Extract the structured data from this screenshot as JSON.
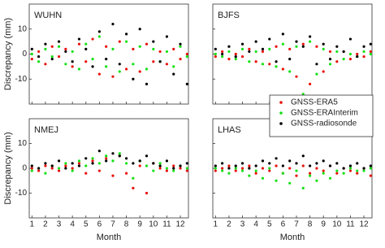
{
  "chart_data": [
    {
      "type": "scatter",
      "title": "WUHN",
      "ylabel": "Discrepancy (mm)",
      "x": [
        1,
        1.5,
        2,
        2.5,
        3,
        3.5,
        4,
        4.5,
        5,
        5.5,
        6,
        6.5,
        7,
        7.5,
        8,
        8.5,
        9,
        9.5,
        10,
        10.5,
        11,
        11.5,
        12,
        12.5
      ],
      "xlim": [
        0.8,
        12.6
      ],
      "ylim": [
        -20,
        20
      ],
      "xticks": [
        1,
        2,
        3,
        4,
        5,
        6,
        7,
        8,
        9,
        10,
        11,
        12
      ],
      "yticks": [
        -10,
        0,
        10
      ],
      "series": [
        {
          "color": "#e8120c",
          "values": [
            -2,
            1,
            -4,
            3,
            -1,
            2,
            -5,
            4,
            -3,
            6,
            -8,
            3,
            -9,
            5,
            -6,
            2,
            -7,
            4,
            -3,
            1,
            -4,
            2,
            -2,
            0
          ]
        },
        {
          "color": "#16e016",
          "values": [
            0,
            -3,
            2,
            -1,
            3,
            -4,
            1,
            -6,
            4,
            -2,
            7,
            -5,
            2,
            -7,
            5,
            -4,
            3,
            -6,
            2,
            -3,
            1,
            -5,
            3,
            -1
          ]
        },
        {
          "color": "#000000",
          "values": [
            2,
            -1,
            4,
            -2,
            5,
            1,
            -3,
            6,
            2,
            -5,
            9,
            -2,
            12,
            -4,
            8,
            -10,
            10,
            -12,
            5,
            -3,
            7,
            -8,
            4,
            -12
          ]
        }
      ]
    },
    {
      "type": "scatter",
      "title": "BJFS",
      "x": [
        1,
        1.5,
        2,
        2.5,
        3,
        3.5,
        4,
        4.5,
        5,
        5.5,
        6,
        6.5,
        7,
        7.5,
        8,
        8.5,
        9,
        9.5,
        10,
        10.5,
        11,
        11.5,
        12,
        12.5
      ],
      "xlim": [
        0.8,
        12.6
      ],
      "ylim": [
        -20,
        20
      ],
      "xticks": [
        1,
        2,
        3,
        4,
        5,
        6,
        7,
        8,
        9,
        10,
        11,
        12
      ],
      "yticks": [
        -10,
        0,
        10
      ],
      "series": [
        {
          "name": "GNSS-ERA5",
          "color": "#e8120c",
          "values": [
            -1,
            1,
            -2,
            0,
            -1,
            2,
            -3,
            1,
            -4,
            3,
            -6,
            2,
            -9,
            4,
            -12,
            3,
            -7,
            1,
            -3,
            1,
            -2,
            0,
            -1,
            1
          ]
        },
        {
          "name": "GNSS-ERAInterim",
          "color": "#16e016",
          "values": [
            0,
            -1,
            1,
            -2,
            2,
            -3,
            1,
            -4,
            2,
            -5,
            4,
            -7,
            3,
            -16,
            5,
            -8,
            2,
            -4,
            1,
            -2,
            0,
            -1,
            1,
            0
          ]
        },
        {
          "name": "GNSS-radiosonde",
          "color": "#000000",
          "values": [
            2,
            0,
            3,
            -1,
            4,
            1,
            5,
            2,
            6,
            -3,
            8,
            -2,
            5,
            3,
            7,
            -4,
            4,
            -2,
            3,
            1,
            6,
            -1,
            3,
            4
          ]
        }
      ]
    },
    {
      "type": "scatter",
      "title": "NMEJ",
      "ylabel": "Discrepancy (mm)",
      "xlabel": "Month",
      "x": [
        1,
        1.5,
        2,
        2.5,
        3,
        3.5,
        4,
        4.5,
        5,
        5.5,
        6,
        6.5,
        7,
        7.5,
        8,
        8.5,
        9,
        9.5,
        10,
        10.5,
        11,
        11.5,
        12,
        12.5
      ],
      "xlim": [
        0.8,
        12.6
      ],
      "ylim": [
        -20,
        20
      ],
      "xticks": [
        1,
        2,
        3,
        4,
        5,
        6,
        7,
        8,
        9,
        10,
        11,
        12
      ],
      "yticks": [
        -10,
        0,
        10
      ],
      "series": [
        {
          "color": "#e8120c",
          "values": [
            0,
            -1,
            1,
            0,
            -1,
            1,
            0,
            2,
            -2,
            3,
            -1,
            4,
            -3,
            5,
            -2,
            -8,
            1,
            -10,
            2,
            0,
            -1,
            1,
            0,
            -1
          ]
        },
        {
          "color": "#16e016",
          "values": [
            -1,
            0,
            -2,
            1,
            0,
            2,
            -1,
            3,
            1,
            4,
            2,
            5,
            3,
            6,
            2,
            -4,
            3,
            1,
            -1,
            2,
            0,
            -1,
            1,
            0
          ]
        },
        {
          "color": "#000000",
          "values": [
            1,
            0,
            2,
            1,
            3,
            0,
            2,
            1,
            4,
            2,
            7,
            3,
            6,
            5,
            4,
            2,
            3,
            5,
            2,
            1,
            3,
            0,
            1,
            2
          ]
        }
      ]
    },
    {
      "type": "scatter",
      "title": "LHAS",
      "xlabel": "Month",
      "x": [
        1,
        1.5,
        2,
        2.5,
        3,
        3.5,
        4,
        4.5,
        5,
        5.5,
        6,
        6.5,
        7,
        7.5,
        8,
        8.5,
        9,
        9.5,
        10,
        10.5,
        11,
        11.5,
        12,
        12.5
      ],
      "xlim": [
        0.8,
        12.6
      ],
      "ylim": [
        -20,
        20
      ],
      "xticks": [
        1,
        2,
        3,
        4,
        5,
        6,
        7,
        8,
        9,
        10,
        11,
        12
      ],
      "yticks": [
        -10,
        0,
        10
      ],
      "series": [
        {
          "color": "#e8120c",
          "values": [
            -1,
            0,
            1,
            -1,
            0,
            1,
            -2,
            0,
            -1,
            1,
            -2,
            0,
            -3,
            1,
            -2,
            0,
            -1,
            1,
            -2,
            0,
            -1,
            -2,
            0,
            -3
          ]
        },
        {
          "color": "#16e016",
          "values": [
            0,
            -1,
            -2,
            0,
            -1,
            -3,
            -1,
            -4,
            0,
            -5,
            -2,
            -6,
            -1,
            -8,
            -3,
            -5,
            -2,
            -4,
            -1,
            -2,
            0,
            -1,
            -1,
            0
          ]
        },
        {
          "color": "#000000",
          "values": [
            1,
            2,
            0,
            1,
            2,
            0,
            1,
            3,
            2,
            4,
            1,
            3,
            2,
            5,
            1,
            2,
            3,
            1,
            2,
            0,
            1,
            2,
            0,
            1
          ]
        }
      ]
    }
  ]
}
